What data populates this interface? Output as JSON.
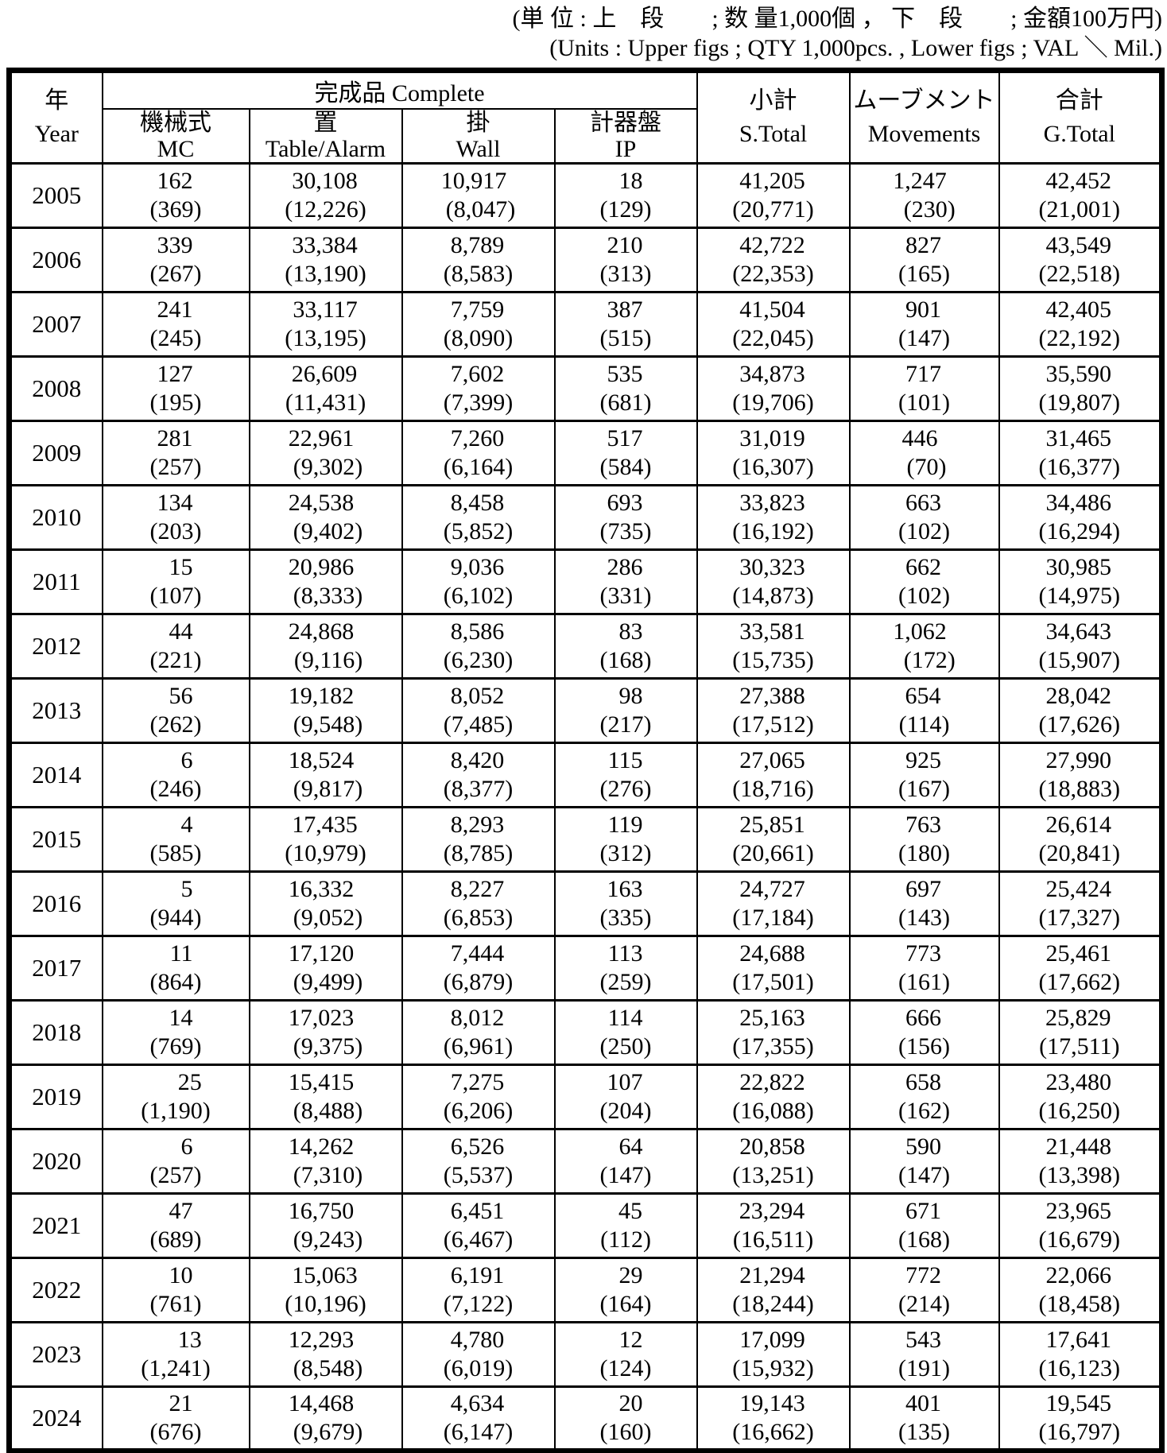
{
  "units_note": {
    "line1_jp": "(単 位 : 上　段　　; 数 量1,000個 ， 下　段　　; 金額100万円)",
    "line2_en": "(Units : Upper figs ; QTY 1,000pcs. ,  Lower figs ; VAL ＼ Mil.)"
  },
  "colors": {
    "text": "#000000",
    "background": "#ffffff",
    "border": "#000000"
  },
  "table": {
    "year_header": {
      "jp": "年",
      "en": "Year"
    },
    "complete_header": "完成品 Complete",
    "sub_columns": [
      {
        "key": "mc",
        "jp": "機械式",
        "en": "MC"
      },
      {
        "key": "table_alarm",
        "jp": "置",
        "en": "Table/Alarm"
      },
      {
        "key": "wall",
        "jp": "掛",
        "en": "Wall"
      },
      {
        "key": "ip",
        "jp": "計器盤",
        "en": "IP"
      }
    ],
    "summary_columns": [
      {
        "key": "s_total",
        "jp": "小計",
        "en": "S.Total"
      },
      {
        "key": "movements",
        "jp": "ムーブメント",
        "en": "Movements"
      },
      {
        "key": "g_total",
        "jp": "合計",
        "en": "G.Total"
      }
    ],
    "column_keys": [
      "mc",
      "table_alarm",
      "wall",
      "ip",
      "s_total",
      "movements",
      "g_total"
    ],
    "rows": [
      {
        "year": "2005",
        "cells": [
          {
            "qty": "162",
            "val": "(369)"
          },
          {
            "qty": "30,108",
            "val": "(12,226)"
          },
          {
            "qty": "10,917",
            "val": "(8,047)"
          },
          {
            "qty": "18",
            "val": "(129)"
          },
          {
            "qty": "41,205",
            "val": "(20,771)"
          },
          {
            "qty": "1,247",
            "val": "(230)"
          },
          {
            "qty": "42,452",
            "val": "(21,001)"
          }
        ]
      },
      {
        "year": "2006",
        "cells": [
          {
            "qty": "339",
            "val": "(267)"
          },
          {
            "qty": "33,384",
            "val": "(13,190)"
          },
          {
            "qty": "8,789",
            "val": "(8,583)"
          },
          {
            "qty": "210",
            "val": "(313)"
          },
          {
            "qty": "42,722",
            "val": "(22,353)"
          },
          {
            "qty": "827",
            "val": "(165)"
          },
          {
            "qty": "43,549",
            "val": "(22,518)"
          }
        ]
      },
      {
        "year": "2007",
        "cells": [
          {
            "qty": "241",
            "val": "(245)"
          },
          {
            "qty": "33,117",
            "val": "(13,195)"
          },
          {
            "qty": "7,759",
            "val": "(8,090)"
          },
          {
            "qty": "387",
            "val": "(515)"
          },
          {
            "qty": "41,504",
            "val": "(22,045)"
          },
          {
            "qty": "901",
            "val": "(147)"
          },
          {
            "qty": "42,405",
            "val": "(22,192)"
          }
        ]
      },
      {
        "year": "2008",
        "cells": [
          {
            "qty": "127",
            "val": "(195)"
          },
          {
            "qty": "26,609",
            "val": "(11,431)"
          },
          {
            "qty": "7,602",
            "val": "(7,399)"
          },
          {
            "qty": "535",
            "val": "(681)"
          },
          {
            "qty": "34,873",
            "val": "(19,706)"
          },
          {
            "qty": "717",
            "val": "(101)"
          },
          {
            "qty": "35,590",
            "val": "(19,807)"
          }
        ]
      },
      {
        "year": "2009",
        "cells": [
          {
            "qty": "281",
            "val": "(257)"
          },
          {
            "qty": "22,961",
            "val": "(9,302)"
          },
          {
            "qty": "7,260",
            "val": "(6,164)"
          },
          {
            "qty": "517",
            "val": "(584)"
          },
          {
            "qty": "31,019",
            "val": "(16,307)"
          },
          {
            "qty": "446",
            "val": "(70)"
          },
          {
            "qty": "31,465",
            "val": "(16,377)"
          }
        ]
      },
      {
        "year": "2010",
        "cells": [
          {
            "qty": "134",
            "val": "(203)"
          },
          {
            "qty": "24,538",
            "val": "(9,402)"
          },
          {
            "qty": "8,458",
            "val": "(5,852)"
          },
          {
            "qty": "693",
            "val": "(735)"
          },
          {
            "qty": "33,823",
            "val": "(16,192)"
          },
          {
            "qty": "663",
            "val": "(102)"
          },
          {
            "qty": "34,486",
            "val": "(16,294)"
          }
        ]
      },
      {
        "year": "2011",
        "cells": [
          {
            "qty": "15",
            "val": "(107)"
          },
          {
            "qty": "20,986",
            "val": "(8,333)"
          },
          {
            "qty": "9,036",
            "val": "(6,102)"
          },
          {
            "qty": "286",
            "val": "(331)"
          },
          {
            "qty": "30,323",
            "val": "(14,873)"
          },
          {
            "qty": "662",
            "val": "(102)"
          },
          {
            "qty": "30,985",
            "val": "(14,975)"
          }
        ]
      },
      {
        "year": "2012",
        "cells": [
          {
            "qty": "44",
            "val": "(221)"
          },
          {
            "qty": "24,868",
            "val": "(9,116)"
          },
          {
            "qty": "8,586",
            "val": "(6,230)"
          },
          {
            "qty": "83",
            "val": "(168)"
          },
          {
            "qty": "33,581",
            "val": "(15,735)"
          },
          {
            "qty": "1,062",
            "val": "(172)"
          },
          {
            "qty": "34,643",
            "val": "(15,907)"
          }
        ]
      },
      {
        "year": "2013",
        "cells": [
          {
            "qty": "56",
            "val": "(262)"
          },
          {
            "qty": "19,182",
            "val": "(9,548)"
          },
          {
            "qty": "8,052",
            "val": "(7,485)"
          },
          {
            "qty": "98",
            "val": "(217)"
          },
          {
            "qty": "27,388",
            "val": "(17,512)"
          },
          {
            "qty": "654",
            "val": "(114)"
          },
          {
            "qty": "28,042",
            "val": "(17,626)"
          }
        ]
      },
      {
        "year": "2014",
        "cells": [
          {
            "qty": "6",
            "val": "(246)"
          },
          {
            "qty": "18,524",
            "val": "(9,817)"
          },
          {
            "qty": "8,420",
            "val": "(8,377)"
          },
          {
            "qty": "115",
            "val": "(276)"
          },
          {
            "qty": "27,065",
            "val": "(18,716)"
          },
          {
            "qty": "925",
            "val": "(167)"
          },
          {
            "qty": "27,990",
            "val": "(18,883)"
          }
        ]
      },
      {
        "year": "2015",
        "cells": [
          {
            "qty": "4",
            "val": "(585)"
          },
          {
            "qty": "17,435",
            "val": "(10,979)"
          },
          {
            "qty": "8,293",
            "val": "(8,785)"
          },
          {
            "qty": "119",
            "val": "(312)"
          },
          {
            "qty": "25,851",
            "val": "(20,661)"
          },
          {
            "qty": "763",
            "val": "(180)"
          },
          {
            "qty": "26,614",
            "val": "(20,841)"
          }
        ]
      },
      {
        "year": "2016",
        "cells": [
          {
            "qty": "5",
            "val": "(944)"
          },
          {
            "qty": "16,332",
            "val": "(9,052)"
          },
          {
            "qty": "8,227",
            "val": "(6,853)"
          },
          {
            "qty": "163",
            "val": "(335)"
          },
          {
            "qty": "24,727",
            "val": "(17,184)"
          },
          {
            "qty": "697",
            "val": "(143)"
          },
          {
            "qty": "25,424",
            "val": "(17,327)"
          }
        ]
      },
      {
        "year": "2017",
        "cells": [
          {
            "qty": "11",
            "val": "(864)"
          },
          {
            "qty": "17,120",
            "val": "(9,499)"
          },
          {
            "qty": "7,444",
            "val": "(6,879)"
          },
          {
            "qty": "113",
            "val": "(259)"
          },
          {
            "qty": "24,688",
            "val": "(17,501)"
          },
          {
            "qty": "773",
            "val": "(161)"
          },
          {
            "qty": "25,461",
            "val": "(17,662)"
          }
        ]
      },
      {
        "year": "2018",
        "cells": [
          {
            "qty": "14",
            "val": "(769)"
          },
          {
            "qty": "17,023",
            "val": "(9,375)"
          },
          {
            "qty": "8,012",
            "val": "(6,961)"
          },
          {
            "qty": "114",
            "val": "(250)"
          },
          {
            "qty": "25,163",
            "val": "(17,355)"
          },
          {
            "qty": "666",
            "val": "(156)"
          },
          {
            "qty": "25,829",
            "val": "(17,511)"
          }
        ]
      },
      {
        "year": "2019",
        "cells": [
          {
            "qty": "25",
            "val": "(1,190)"
          },
          {
            "qty": "15,415",
            "val": "(8,488)"
          },
          {
            "qty": "7,275",
            "val": "(6,206)"
          },
          {
            "qty": "107",
            "val": "(204)"
          },
          {
            "qty": "22,822",
            "val": "(16,088)"
          },
          {
            "qty": "658",
            "val": "(162)"
          },
          {
            "qty": "23,480",
            "val": "(16,250)"
          }
        ]
      },
      {
        "year": "2020",
        "cells": [
          {
            "qty": "6",
            "val": "(257)"
          },
          {
            "qty": "14,262",
            "val": "(7,310)"
          },
          {
            "qty": "6,526",
            "val": "(5,537)"
          },
          {
            "qty": "64",
            "val": "(147)"
          },
          {
            "qty": "20,858",
            "val": "(13,251)"
          },
          {
            "qty": "590",
            "val": "(147)"
          },
          {
            "qty": "21,448",
            "val": "(13,398)"
          }
        ]
      },
      {
        "year": "2021",
        "cells": [
          {
            "qty": "47",
            "val": "(689)"
          },
          {
            "qty": "16,750",
            "val": "(9,243)"
          },
          {
            "qty": "6,451",
            "val": "(6,467)"
          },
          {
            "qty": "45",
            "val": "(112)"
          },
          {
            "qty": "23,294",
            "val": "(16,511)"
          },
          {
            "qty": "671",
            "val": "(168)"
          },
          {
            "qty": "23,965",
            "val": "(16,679)"
          }
        ]
      },
      {
        "year": "2022",
        "cells": [
          {
            "qty": "10",
            "val": "(761)"
          },
          {
            "qty": "15,063",
            "val": "(10,196)"
          },
          {
            "qty": "6,191",
            "val": "(7,122)"
          },
          {
            "qty": "29",
            "val": "(164)"
          },
          {
            "qty": "21,294",
            "val": "(18,244)"
          },
          {
            "qty": "772",
            "val": "(214)"
          },
          {
            "qty": "22,066",
            "val": "(18,458)"
          }
        ]
      },
      {
        "year": "2023",
        "cells": [
          {
            "qty": "13",
            "val": "(1,241)"
          },
          {
            "qty": "12,293",
            "val": "(8,548)"
          },
          {
            "qty": "4,780",
            "val": "(6,019)"
          },
          {
            "qty": "12",
            "val": "(124)"
          },
          {
            "qty": "17,099",
            "val": "(15,932)"
          },
          {
            "qty": "543",
            "val": "(191)"
          },
          {
            "qty": "17,641",
            "val": "(16,123)"
          }
        ]
      },
      {
        "year": "2024",
        "cells": [
          {
            "qty": "21",
            "val": "(676)"
          },
          {
            "qty": "14,468",
            "val": "(9,679)"
          },
          {
            "qty": "4,634",
            "val": "(6,147)"
          },
          {
            "qty": "20",
            "val": "(160)"
          },
          {
            "qty": "19,143",
            "val": "(16,662)"
          },
          {
            "qty": "401",
            "val": "(135)"
          },
          {
            "qty": "19,545",
            "val": "(16,797)"
          }
        ]
      }
    ]
  }
}
